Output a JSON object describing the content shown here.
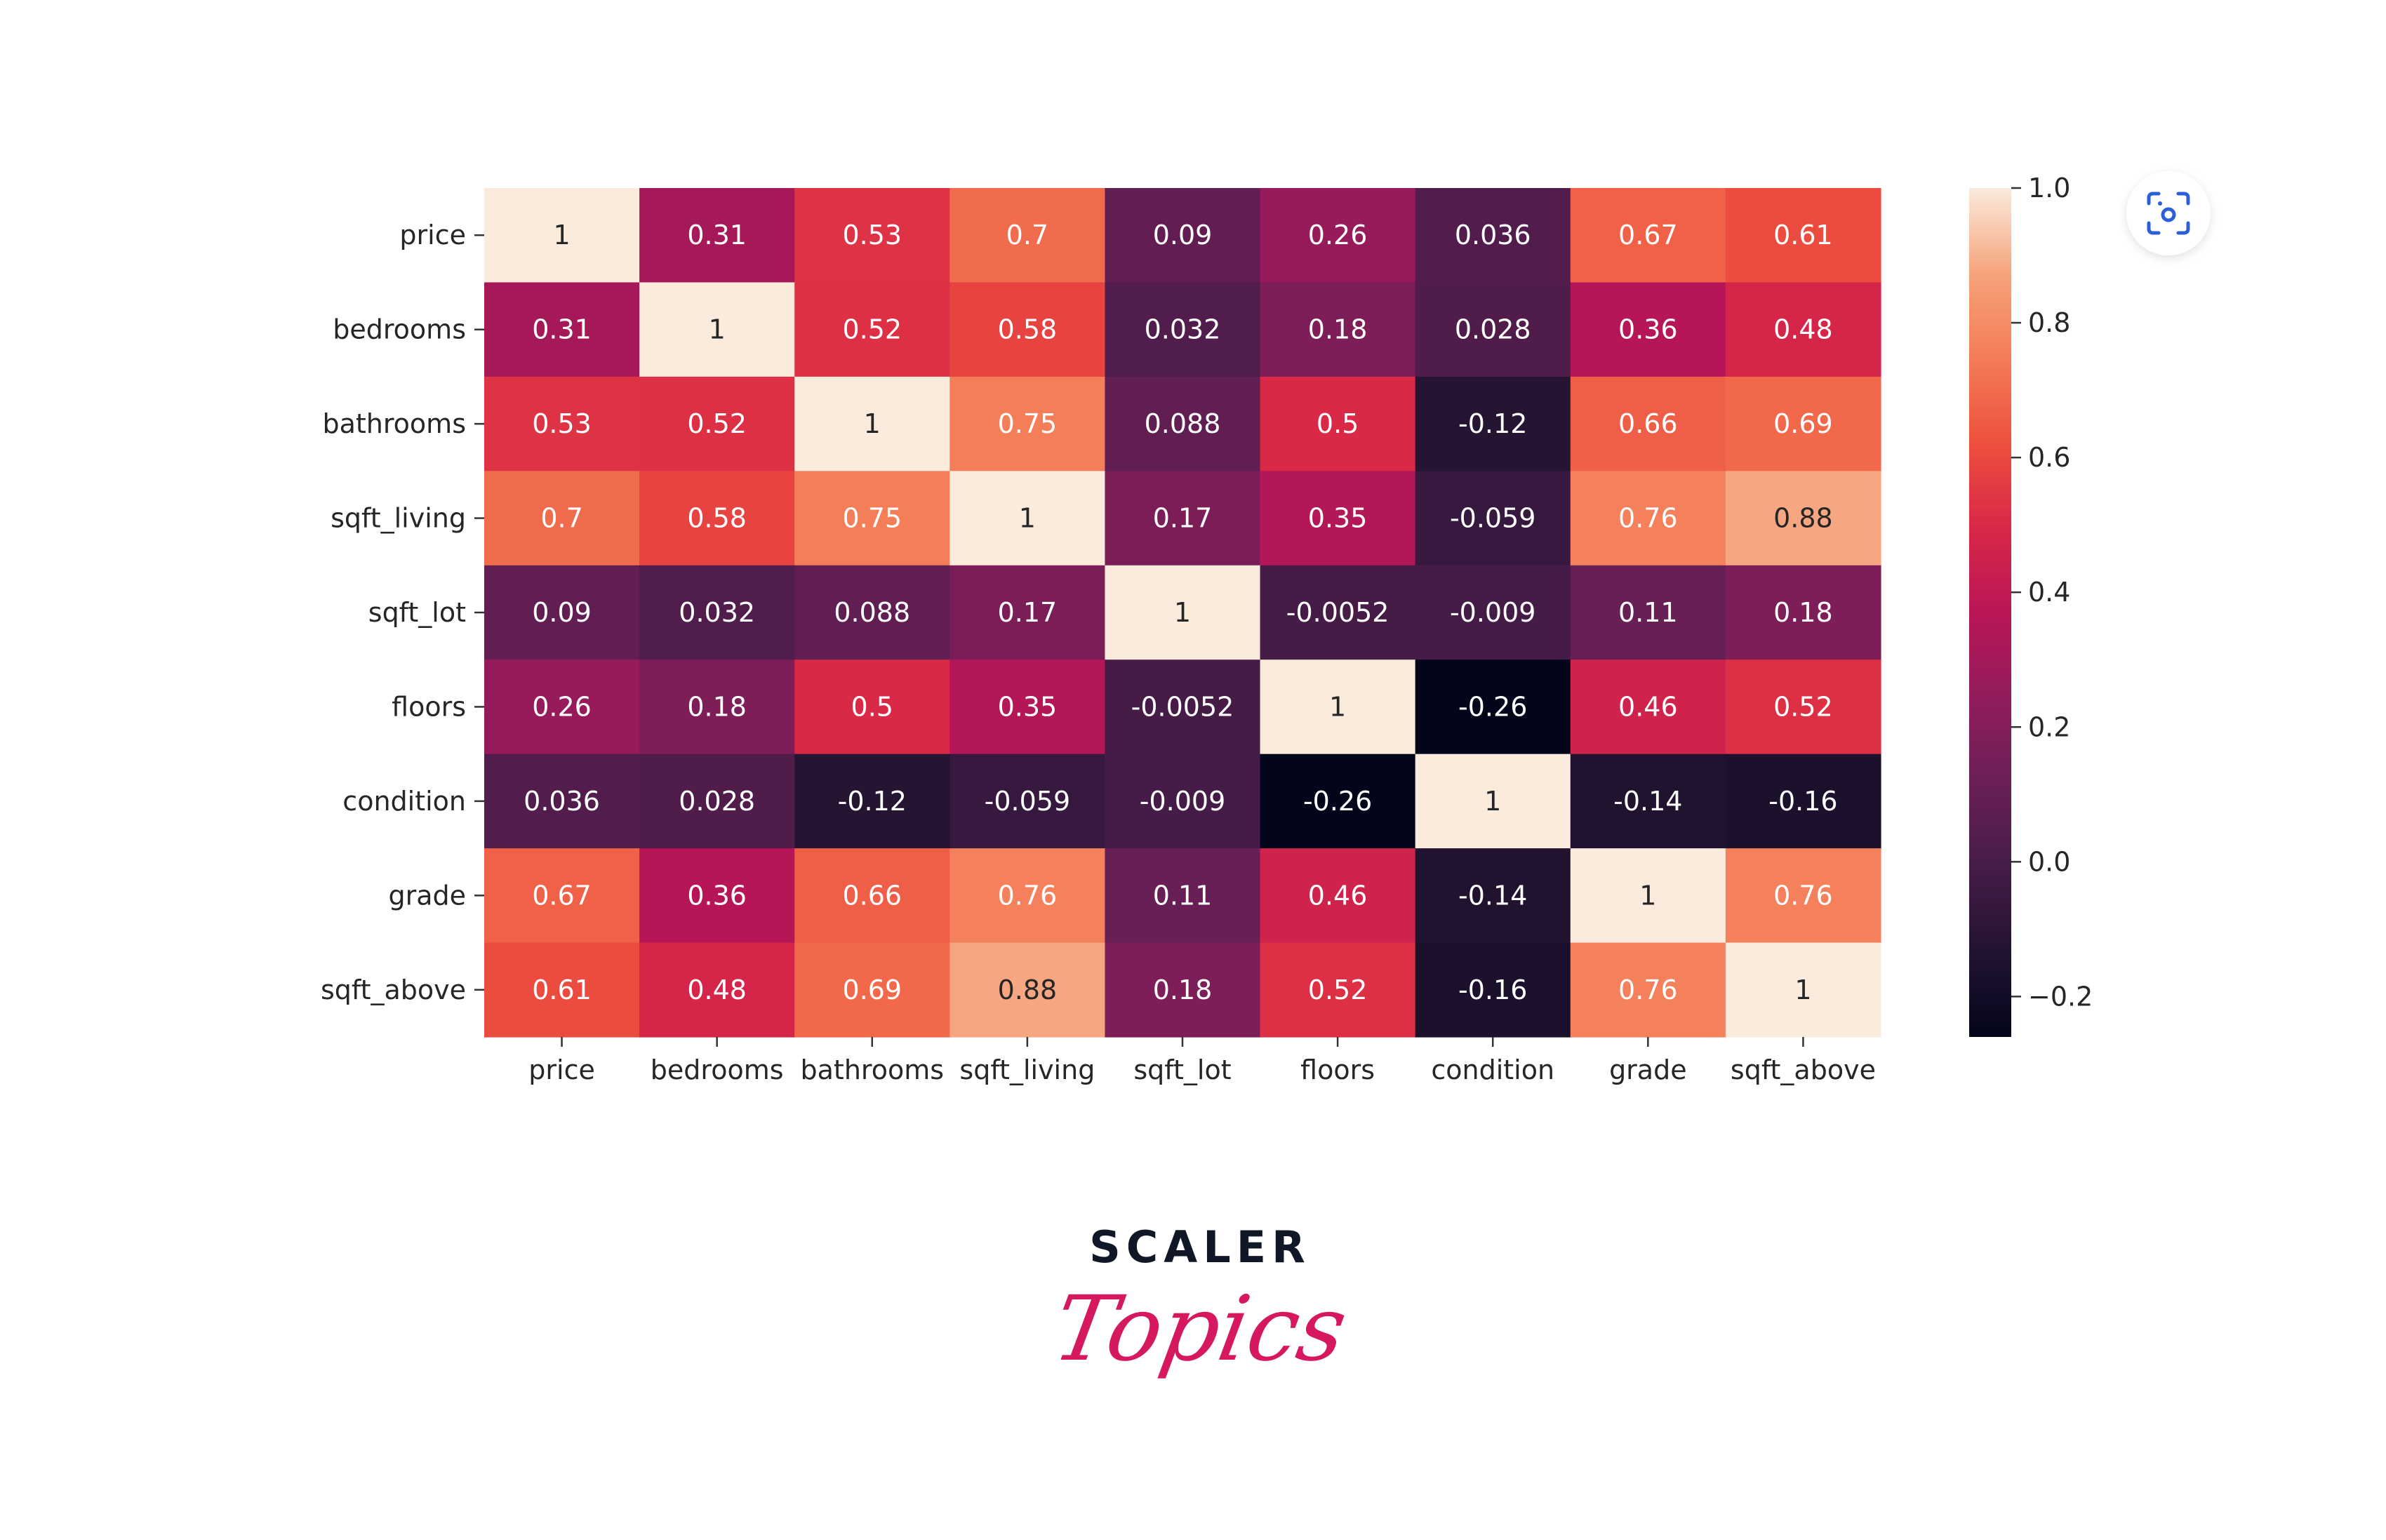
{
  "chart_data": {
    "type": "heatmap",
    "title": "",
    "labels": [
      "price",
      "bedrooms",
      "bathrooms",
      "sqft_living",
      "sqft_lot",
      "floors",
      "condition",
      "grade",
      "sqft_above"
    ],
    "matrix": [
      [
        "1",
        "0.31",
        "0.53",
        "0.7",
        "0.09",
        "0.26",
        "0.036",
        "0.67",
        "0.61"
      ],
      [
        "0.31",
        "1",
        "0.52",
        "0.58",
        "0.032",
        "0.18",
        "0.028",
        "0.36",
        "0.48"
      ],
      [
        "0.53",
        "0.52",
        "1",
        "0.75",
        "0.088",
        "0.5",
        "-0.12",
        "0.66",
        "0.69"
      ],
      [
        "0.7",
        "0.58",
        "0.75",
        "1",
        "0.17",
        "0.35",
        "-0.059",
        "0.76",
        "0.88"
      ],
      [
        "0.09",
        "0.032",
        "0.088",
        "0.17",
        "1",
        "-0.0052",
        "-0.009",
        "0.11",
        "0.18"
      ],
      [
        "0.26",
        "0.18",
        "0.5",
        "0.35",
        "-0.0052",
        "1",
        "-0.26",
        "0.46",
        "0.52"
      ],
      [
        "0.036",
        "0.028",
        "-0.12",
        "-0.059",
        "-0.009",
        "-0.26",
        "1",
        "-0.14",
        "-0.16"
      ],
      [
        "0.67",
        "0.36",
        "0.66",
        "0.76",
        "0.11",
        "0.46",
        "-0.14",
        "1",
        "0.76"
      ],
      [
        "0.61",
        "0.48",
        "0.69",
        "0.88",
        "0.18",
        "0.52",
        "-0.16",
        "0.76",
        "1"
      ]
    ],
    "colormap": "rocket",
    "vmin": -0.26,
    "vmax": 1.0,
    "colorbar_ticks": [
      {
        "value": 1.0,
        "label": "1.0"
      },
      {
        "value": 0.8,
        "label": "0.8"
      },
      {
        "value": 0.6,
        "label": "0.6"
      },
      {
        "value": 0.4,
        "label": "0.4"
      },
      {
        "value": 0.2,
        "label": "0.2"
      },
      {
        "value": 0.0,
        "label": "0.0"
      },
      {
        "value": -0.2,
        "label": "−0.2"
      }
    ]
  },
  "overlay": {
    "icon": "lens-scan-icon",
    "accent": "#2b5fd9"
  },
  "logo": {
    "line1": "SCALER",
    "line2": "Topics",
    "color1": "#101828",
    "color2": "#d6195f"
  }
}
